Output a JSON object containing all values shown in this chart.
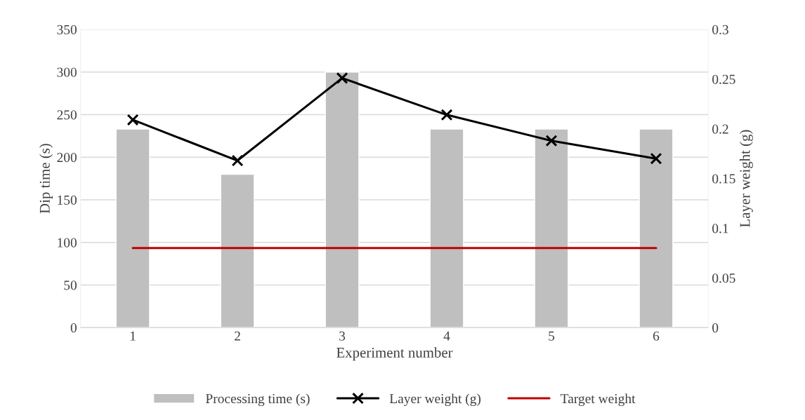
{
  "chart_data": {
    "type": "bar",
    "xlabel": "Experiment number",
    "ylabel": "Dip time (s)",
    "y2label": "Layer weight (g)",
    "categories": [
      "1",
      "2",
      "3",
      "4",
      "5",
      "6"
    ],
    "series": [
      {
        "name": "Processing time (s)",
        "color": "#bfbfbf",
        "values": [
          233,
          180,
          300,
          233,
          233,
          233
        ]
      },
      {
        "name": "Layer weight (g)",
        "type": "line",
        "axis": "y2",
        "color": "#000000",
        "marker": "cross",
        "line_style": "solid",
        "values": [
          0.209,
          0.168,
          0.251,
          0.214,
          0.188,
          0.17
        ]
      },
      {
        "name": "Target weight",
        "type": "line",
        "axis": "y2",
        "color": "#c00000",
        "marker": "none",
        "line_style": "solid",
        "values": [
          0.08,
          0.08,
          0.08,
          0.08,
          0.08,
          0.08
        ]
      }
    ],
    "ylim": [
      0,
      350
    ],
    "yticks": [
      0,
      50,
      100,
      150,
      200,
      250,
      300,
      350
    ],
    "y2lim": [
      0,
      0.3
    ],
    "y2ticks": [
      0,
      0.05,
      0.1,
      0.15,
      0.2,
      0.25,
      0.3
    ],
    "grid": "y",
    "legend": "bottom"
  }
}
